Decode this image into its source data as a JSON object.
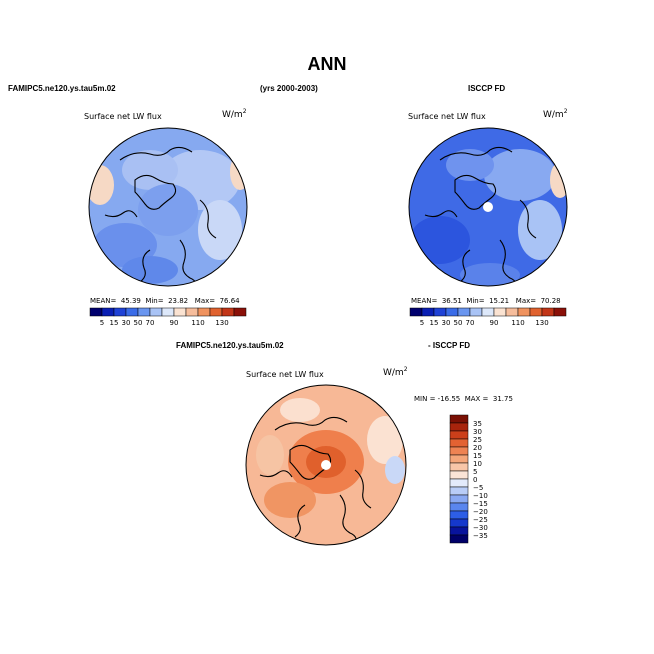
{
  "page": {
    "title": "ANN",
    "header_left": "FAMIPC5.ne120.ys.tau5m.02",
    "header_center": "(yrs 2000-2003)",
    "header_right": "ISCCP FD",
    "diff_header_left": "FAMIPC5.ne120.ys.tau5m.02",
    "diff_header_right": "- ISCCP FD"
  },
  "colors": {
    "abs_scale": [
      "#00006e",
      "#0a1fb4",
      "#1f42d6",
      "#3a6ce8",
      "#6a96f0",
      "#a9c3f5",
      "#dde8fa",
      "#fbe3d2",
      "#f6bd9c",
      "#f0935f",
      "#e0622f",
      "#c23618",
      "#8a1008"
    ],
    "diff_scale": [
      "#000068",
      "#08139c",
      "#1538cc",
      "#2d5ee6",
      "#5a86ee",
      "#8aa9f2",
      "#b9cdf7",
      "#e3ebfb",
      "#fbe4d6",
      "#f8c6a8",
      "#f4a67a",
      "#ee8353",
      "#e36232",
      "#cc3f1a",
      "#a8240c",
      "#7a1004"
    ],
    "land_outline": "#000000"
  },
  "chart_data": [
    {
      "type": "heatmap",
      "panel": "model",
      "subtitle": "Surface net LW flux",
      "units": "W/m2",
      "mean_label": "MEAN=",
      "mean": "45.39",
      "min_label": "Min=",
      "min": "23.82",
      "max_label": "Max=",
      "max": "76.64",
      "projection": "north-polar-stereographic",
      "levels": [
        5,
        15,
        30,
        50,
        70,
        90,
        110,
        130
      ],
      "levels_text": [
        "5",
        "15",
        "30",
        "50",
        "70",
        "90",
        "110",
        "130"
      ],
      "colorbar": "horizontal"
    },
    {
      "type": "heatmap",
      "panel": "observation",
      "subtitle": "Surface net LW flux",
      "units": "W/m2",
      "mean_label": "MEAN=",
      "mean": "36.51",
      "min_label": "Min=",
      "min": "15.21",
      "max_label": "Max=",
      "max": "70.28",
      "projection": "north-polar-stereographic",
      "levels": [
        5,
        15,
        30,
        50,
        70,
        90,
        110,
        130
      ],
      "levels_text": [
        "5",
        "15",
        "30",
        "50",
        "70",
        "90",
        "110",
        "130"
      ],
      "colorbar": "horizontal"
    },
    {
      "type": "heatmap",
      "panel": "difference",
      "subtitle": "Surface net LW flux",
      "units": "W/m2",
      "min_label": "MIN =",
      "min": "-16.55",
      "max_label": "MAX =",
      "max": "31.75",
      "projection": "north-polar-stereographic",
      "levels": [
        35,
        30,
        25,
        20,
        15,
        10,
        5,
        0,
        -5,
        -10,
        -15,
        -20,
        -25,
        -30,
        -35
      ],
      "levels_text": [
        "35",
        "30",
        "25",
        "20",
        "15",
        "10",
        "5",
        "0",
        "−5",
        "−10",
        "−15",
        "−20",
        "−25",
        "−30",
        "−35"
      ],
      "colorbar": "vertical"
    }
  ]
}
